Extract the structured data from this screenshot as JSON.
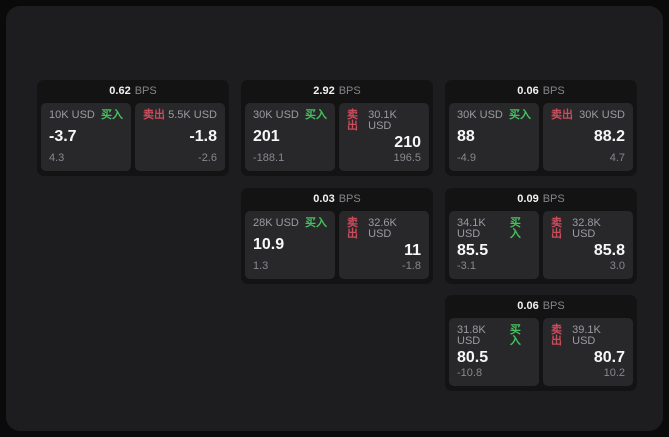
{
  "colors": {
    "buy_accent": "#45c15e",
    "sell_accent": "#cc4c5c",
    "surface_bg": "#1d1d1f",
    "card_bg": "#131314",
    "panel_bg": "#28282b"
  },
  "cards": [
    {
      "bps_value": "0.62",
      "bps_unit": "BPS",
      "buy": {
        "label": "买入",
        "size": "10K USD",
        "price": "-3.7",
        "delta": "4.3"
      },
      "sell": {
        "label": "卖出",
        "size": "5.5K USD",
        "price": "-1.8",
        "delta": "-2.6"
      }
    },
    {
      "bps_value": "2.92",
      "bps_unit": "BPS",
      "buy": {
        "label": "买入",
        "size": "30K USD",
        "price": "201",
        "delta": "-188.1"
      },
      "sell": {
        "label": "卖出",
        "size": "30.1K USD",
        "price": "210",
        "delta": "196.5"
      }
    },
    {
      "bps_value": "0.06",
      "bps_unit": "BPS",
      "buy": {
        "label": "买入",
        "size": "30K USD",
        "price": "88",
        "delta": "-4.9"
      },
      "sell": {
        "label": "卖出",
        "size": "30K USD",
        "price": "88.2",
        "delta": "4.7"
      }
    },
    {
      "bps_value": "0.03",
      "bps_unit": "BPS",
      "buy": {
        "label": "买入",
        "size": "28K USD",
        "price": "10.9",
        "delta": "1.3"
      },
      "sell": {
        "label": "卖出",
        "size": "32.6K USD",
        "price": "11",
        "delta": "-1.8"
      }
    },
    {
      "bps_value": "0.09",
      "bps_unit": "BPS",
      "buy": {
        "label": "买入",
        "size": "34.1K USD",
        "price": "85.5",
        "delta": "-3.1"
      },
      "sell": {
        "label": "卖出",
        "size": "32.8K USD",
        "price": "85.8",
        "delta": "3.0"
      }
    },
    {
      "bps_value": "0.06",
      "bps_unit": "BPS",
      "buy": {
        "label": "买入",
        "size": "31.8K USD",
        "price": "80.5",
        "delta": "-10.8"
      },
      "sell": {
        "label": "卖出",
        "size": "39.1K USD",
        "price": "80.7",
        "delta": "10.2"
      }
    }
  ]
}
